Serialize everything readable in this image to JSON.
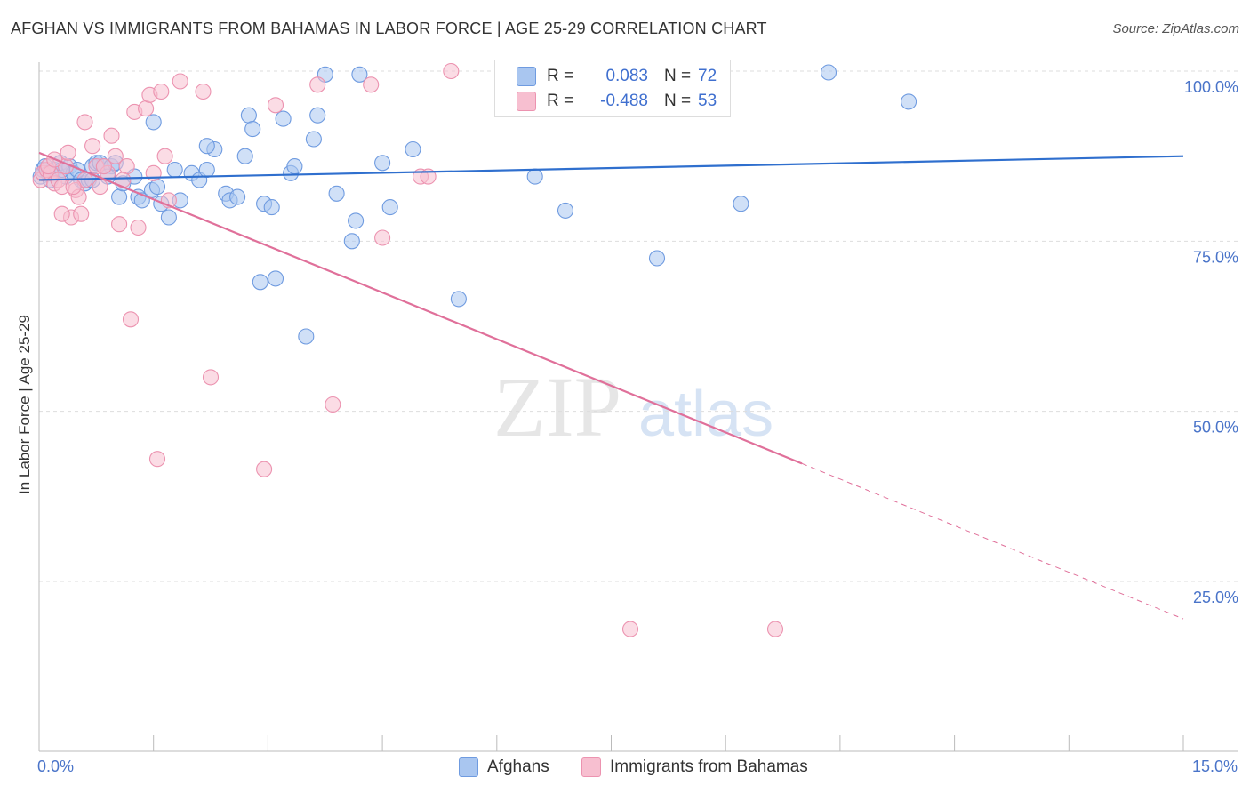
{
  "title": "AFGHAN VS IMMIGRANTS FROM BAHAMAS IN LABOR FORCE | AGE 25-29 CORRELATION CHART",
  "source": "Source: ZipAtlas.com",
  "watermark": {
    "zip": "ZIP",
    "atlas": "atlas"
  },
  "legend": {
    "r_label": "R =",
    "n_label": "N =",
    "series": [
      {
        "name": "Afghans",
        "r": "0.083",
        "n": "72",
        "fill": "#a9c6f0",
        "stroke": "#6f9be0"
      },
      {
        "name": "Immigrants from Bahamas",
        "r": "-0.488",
        "n": "53",
        "fill": "#f7bfd0",
        "stroke": "#ec93b0"
      }
    ]
  },
  "colors": {
    "blue_line": "#2f6fce",
    "pink_line": "#e0709a",
    "tick_text": "#4a74c9",
    "grid": "#dddddd"
  },
  "chart_data": {
    "type": "scatter",
    "xlabel": "",
    "ylabel": "In Labor Force | Age 25-29",
    "x_tick_labels": {
      "left": "0.0%",
      "right": "15.0%"
    },
    "y_tick_labels": [
      "100.0%",
      "75.0%",
      "50.0%",
      "25.0%"
    ],
    "y_tick_values": [
      100,
      75,
      50,
      25
    ],
    "xlim": [
      0,
      15
    ],
    "ylim": [
      0,
      101
    ],
    "series": [
      {
        "name": "Afghans",
        "trend": {
          "x0": 0,
          "y0": 84.0,
          "x1": 15,
          "y1": 87.5,
          "dash_from_x": null
        },
        "points": [
          [
            0.02,
            84.5
          ],
          [
            0.05,
            85.5
          ],
          [
            0.08,
            86.0
          ],
          [
            0.12,
            85.0
          ],
          [
            0.15,
            84.0
          ],
          [
            0.2,
            85.5
          ],
          [
            0.28,
            86.5
          ],
          [
            0.35,
            84.5
          ],
          [
            0.4,
            86.0
          ],
          [
            0.45,
            85.0
          ],
          [
            0.5,
            85.5
          ],
          [
            0.55,
            84.0
          ],
          [
            0.6,
            83.5
          ],
          [
            0.65,
            84.0
          ],
          [
            0.7,
            86.0
          ],
          [
            0.75,
            86.5
          ],
          [
            0.8,
            86.5
          ],
          [
            0.85,
            86.0
          ],
          [
            0.95,
            86.0
          ],
          [
            1.05,
            81.5
          ],
          [
            1.1,
            83.5
          ],
          [
            1.25,
            84.5
          ],
          [
            1.3,
            81.5
          ],
          [
            1.35,
            81.0
          ],
          [
            1.48,
            82.5
          ],
          [
            1.55,
            83.0
          ],
          [
            1.6,
            80.5
          ],
          [
            1.7,
            78.5
          ],
          [
            1.78,
            85.5
          ],
          [
            1.85,
            81.0
          ],
          [
            2.0,
            85.0
          ],
          [
            2.1,
            84.0
          ],
          [
            2.2,
            85.5
          ],
          [
            2.3,
            88.5
          ],
          [
            2.45,
            82.0
          ],
          [
            2.5,
            81.0
          ],
          [
            2.6,
            81.5
          ],
          [
            2.7,
            87.5
          ],
          [
            2.75,
            93.5
          ],
          [
            2.8,
            91.5
          ],
          [
            2.9,
            69.0
          ],
          [
            2.95,
            80.5
          ],
          [
            3.05,
            80.0
          ],
          [
            3.1,
            69.5
          ],
          [
            3.2,
            93.0
          ],
          [
            3.3,
            85.0
          ],
          [
            3.35,
            86.0
          ],
          [
            3.5,
            61.0
          ],
          [
            3.6,
            90.0
          ],
          [
            3.65,
            93.5
          ],
          [
            3.75,
            99.5
          ],
          [
            3.9,
            82.0
          ],
          [
            4.1,
            75.0
          ],
          [
            4.15,
            78.0
          ],
          [
            4.2,
            99.5
          ],
          [
            4.5,
            86.5
          ],
          [
            4.6,
            80.0
          ],
          [
            4.9,
            88.5
          ],
          [
            5.5,
            66.5
          ],
          [
            6.5,
            84.5
          ],
          [
            6.9,
            79.5
          ],
          [
            8.1,
            72.5
          ],
          [
            9.2,
            80.5
          ],
          [
            10.35,
            99.8
          ],
          [
            11.4,
            95.5
          ],
          [
            0.15,
            85.0
          ],
          [
            1.5,
            92.5
          ],
          [
            2.2,
            89.0
          ],
          [
            0.3,
            85.5
          ],
          [
            1.0,
            86.5
          ],
          [
            0.9,
            84.5
          ],
          [
            0.7,
            84.0
          ]
        ]
      },
      {
        "name": "Immigrants from Bahamas",
        "trend": {
          "x0": 0,
          "y0": 88.0,
          "x1": 15,
          "y1": 19.5,
          "dash_from_x": 10.0
        },
        "points": [
          [
            0.02,
            84.0
          ],
          [
            0.05,
            85.0
          ],
          [
            0.1,
            85.5
          ],
          [
            0.15,
            85.0
          ],
          [
            0.2,
            83.5
          ],
          [
            0.25,
            84.0
          ],
          [
            0.3,
            83.0
          ],
          [
            0.35,
            86.0
          ],
          [
            0.38,
            88.0
          ],
          [
            0.42,
            78.5
          ],
          [
            0.48,
            82.5
          ],
          [
            0.52,
            81.5
          ],
          [
            0.55,
            79.0
          ],
          [
            0.6,
            92.5
          ],
          [
            0.7,
            89.0
          ],
          [
            0.75,
            86.0
          ],
          [
            0.8,
            83.0
          ],
          [
            0.9,
            85.0
          ],
          [
            0.95,
            90.5
          ],
          [
            1.0,
            87.5
          ],
          [
            1.05,
            77.5
          ],
          [
            1.15,
            86.0
          ],
          [
            1.2,
            63.5
          ],
          [
            1.25,
            94.0
          ],
          [
            1.3,
            77.0
          ],
          [
            1.4,
            94.5
          ],
          [
            1.45,
            96.5
          ],
          [
            1.5,
            85.0
          ],
          [
            1.55,
            43.0
          ],
          [
            1.6,
            97.0
          ],
          [
            1.65,
            87.5
          ],
          [
            1.7,
            81.0
          ],
          [
            1.85,
            98.5
          ],
          [
            2.15,
            97.0
          ],
          [
            2.25,
            55.0
          ],
          [
            2.95,
            41.5
          ],
          [
            3.1,
            95.0
          ],
          [
            3.65,
            98.0
          ],
          [
            3.85,
            51.0
          ],
          [
            4.35,
            98.0
          ],
          [
            4.5,
            75.5
          ],
          [
            5.0,
            84.5
          ],
          [
            5.1,
            84.5
          ],
          [
            5.4,
            100.0
          ],
          [
            7.75,
            18.0
          ],
          [
            9.65,
            18.0
          ],
          [
            0.12,
            86.0
          ],
          [
            0.6,
            84.0
          ],
          [
            0.3,
            79.0
          ],
          [
            0.85,
            86.0
          ],
          [
            1.1,
            84.0
          ],
          [
            0.45,
            83.0
          ],
          [
            0.2,
            87.0
          ]
        ]
      }
    ]
  }
}
